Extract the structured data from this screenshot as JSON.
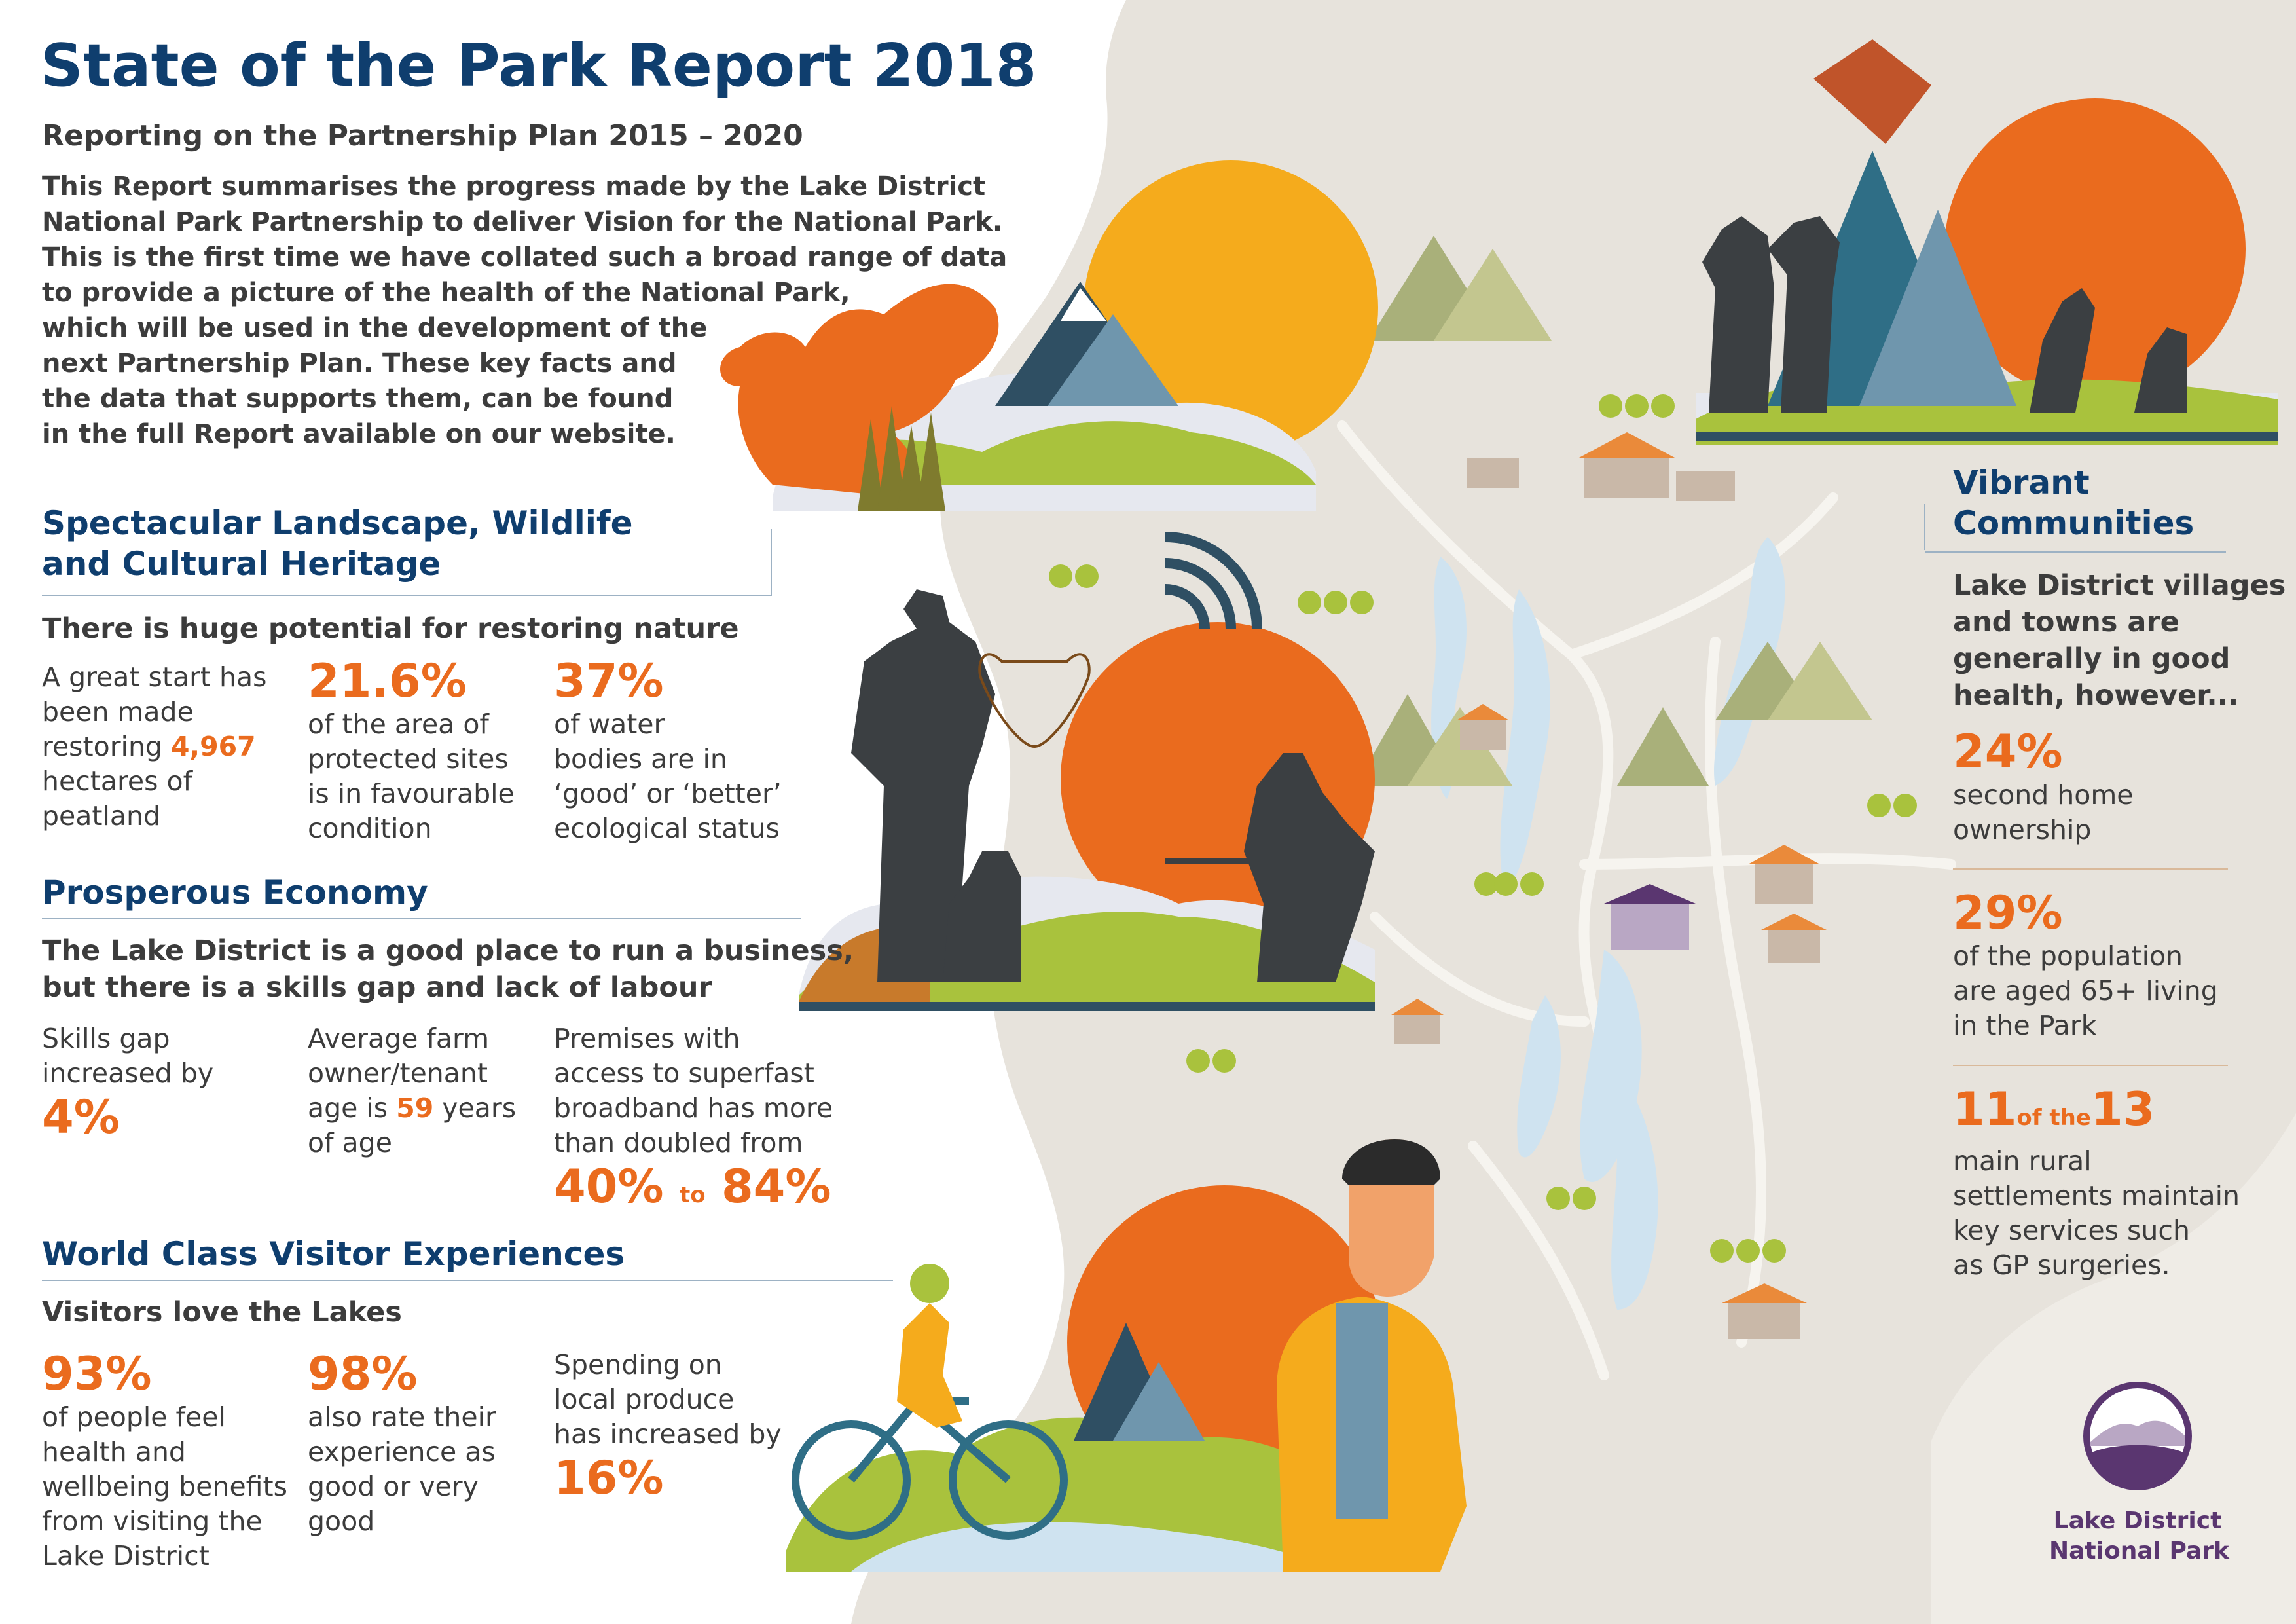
{
  "header": {
    "title": "State of the Park Report 2018",
    "subtitle": "Reporting on the Partnership Plan 2015 – 2020",
    "intro_lines": [
      "This Report summarises the progress made by the Lake District",
      "National Park Partnership to deliver Vision for the National Park.",
      "This is the first time we have collated such a broad range of data",
      "to provide a picture of the health of the National Park,",
      "which will be used in the development of the",
      "next Partnership Plan. These key facts and",
      "the data that supports them, can be found",
      "in the full Report available on our website."
    ]
  },
  "landscape": {
    "heading_line1": "Spectacular Landscape, Wildlife",
    "heading_line2": "and Cultural Heritage",
    "lead": "There is huge potential for restoring nature",
    "stat1": {
      "lines": [
        "A great start has",
        "been made"
      ],
      "line3_pre": "restoring ",
      "highlight": "4,967",
      "lines_after": [
        "hectares of",
        "peatland"
      ]
    },
    "stat2": {
      "value": "21.6%",
      "lines": [
        "of the area of",
        "protected sites",
        "is in favourable",
        "condition"
      ]
    },
    "stat3": {
      "value": "37%",
      "lines": [
        "of water",
        "bodies are in",
        "‘good’ or ‘better’",
        "ecological status"
      ]
    }
  },
  "economy": {
    "heading": "Prosperous Economy",
    "lead_line1": "The Lake District is a good place to run a business,",
    "lead_line2": "but there is a skills gap and lack of labour",
    "stat1": {
      "lines": [
        "Skills gap",
        "increased by"
      ],
      "value": "4%"
    },
    "stat2": {
      "line1": "Average farm",
      "line2": "owner/tenant",
      "line3_pre": "age is ",
      "highlight": "59",
      "line3_post": " years",
      "line4": "of age"
    },
    "stat3": {
      "lines": [
        "Premises with",
        "access to superfast",
        "broadband has more",
        "than doubled from"
      ],
      "from": "40%",
      "to_word": "to",
      "to": "84%"
    }
  },
  "visitors": {
    "heading": "World Class Visitor Experiences",
    "lead": "Visitors love the Lakes",
    "stat1": {
      "value": "93%",
      "lines": [
        "of people feel",
        "health and",
        "wellbeing benefits",
        "from visiting the",
        "Lake District"
      ]
    },
    "stat2": {
      "value": "98%",
      "lines": [
        "also rate their",
        "experience as",
        "good or very",
        "good"
      ]
    },
    "stat3": {
      "lines": [
        "Spending on",
        "local produce",
        "has increased by"
      ],
      "value": "16%"
    }
  },
  "communities": {
    "heading_line1": "Vibrant",
    "heading_line2": "Communities",
    "lead_lines": [
      "Lake District villages",
      "and towns are",
      "generally in good",
      "health, however..."
    ],
    "stat1": {
      "value": "24%",
      "lines": [
        "second home",
        "ownership"
      ]
    },
    "stat2": {
      "value": "29%",
      "lines": [
        "of the population",
        "are aged 65+ living",
        "in the Park"
      ]
    },
    "stat3": {
      "value_a": "11",
      "of_the": "of the",
      "value_b": "13",
      "lines": [
        "main rural",
        "settlements maintain",
        "key services such",
        "as GP surgeries."
      ]
    }
  },
  "logo": {
    "line1": "Lake District",
    "line2": "National Park"
  },
  "colors": {
    "navy": "#0f3e6e",
    "orange": "#ea6b1e",
    "map": "#e7e3dc",
    "grass": "#a9c23d",
    "purple": "#5a3670"
  }
}
